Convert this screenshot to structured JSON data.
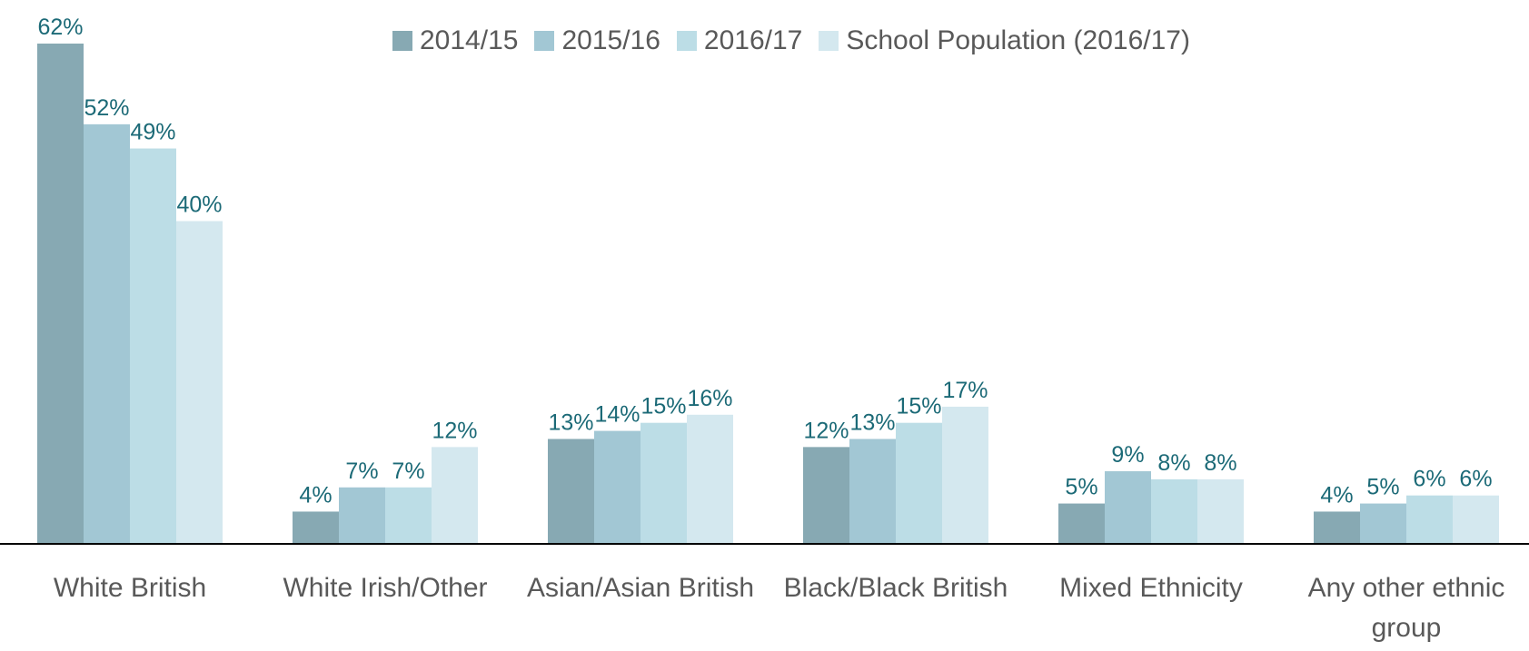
{
  "chart_data": {
    "type": "bar",
    "categories": [
      "White British",
      "White Irish/Other",
      "Asian/Asian British",
      "Black/Black British",
      "Mixed Ethnicity",
      "Any other ethnic group"
    ],
    "series": [
      {
        "name": "2014/15",
        "color": "#87a9b3",
        "values": [
          62,
          4,
          13,
          12,
          5,
          4
        ],
        "value_labels": [
          "62%",
          "4%",
          "13%",
          "12%",
          "5%",
          "4%"
        ]
      },
      {
        "name": "2015/16",
        "color": "#a2c7d4",
        "values": [
          52,
          7,
          14,
          13,
          9,
          5
        ],
        "value_labels": [
          "52%",
          "7%",
          "14%",
          "13%",
          "9%",
          "5%"
        ]
      },
      {
        "name": "2016/17",
        "color": "#bcdde6",
        "values": [
          49,
          7,
          15,
          15,
          8,
          6
        ],
        "value_labels": [
          "49%",
          "7%",
          "15%",
          "15%",
          "8%",
          "6%"
        ]
      },
      {
        "name": "School Population (2016/17)",
        "color": "#d4e8ef",
        "values": [
          40,
          12,
          16,
          17,
          8,
          6
        ],
        "value_labels": [
          "40%",
          "12%",
          "16%",
          "17%",
          "8%",
          "6%"
        ]
      }
    ],
    "legend": "top"
  }
}
